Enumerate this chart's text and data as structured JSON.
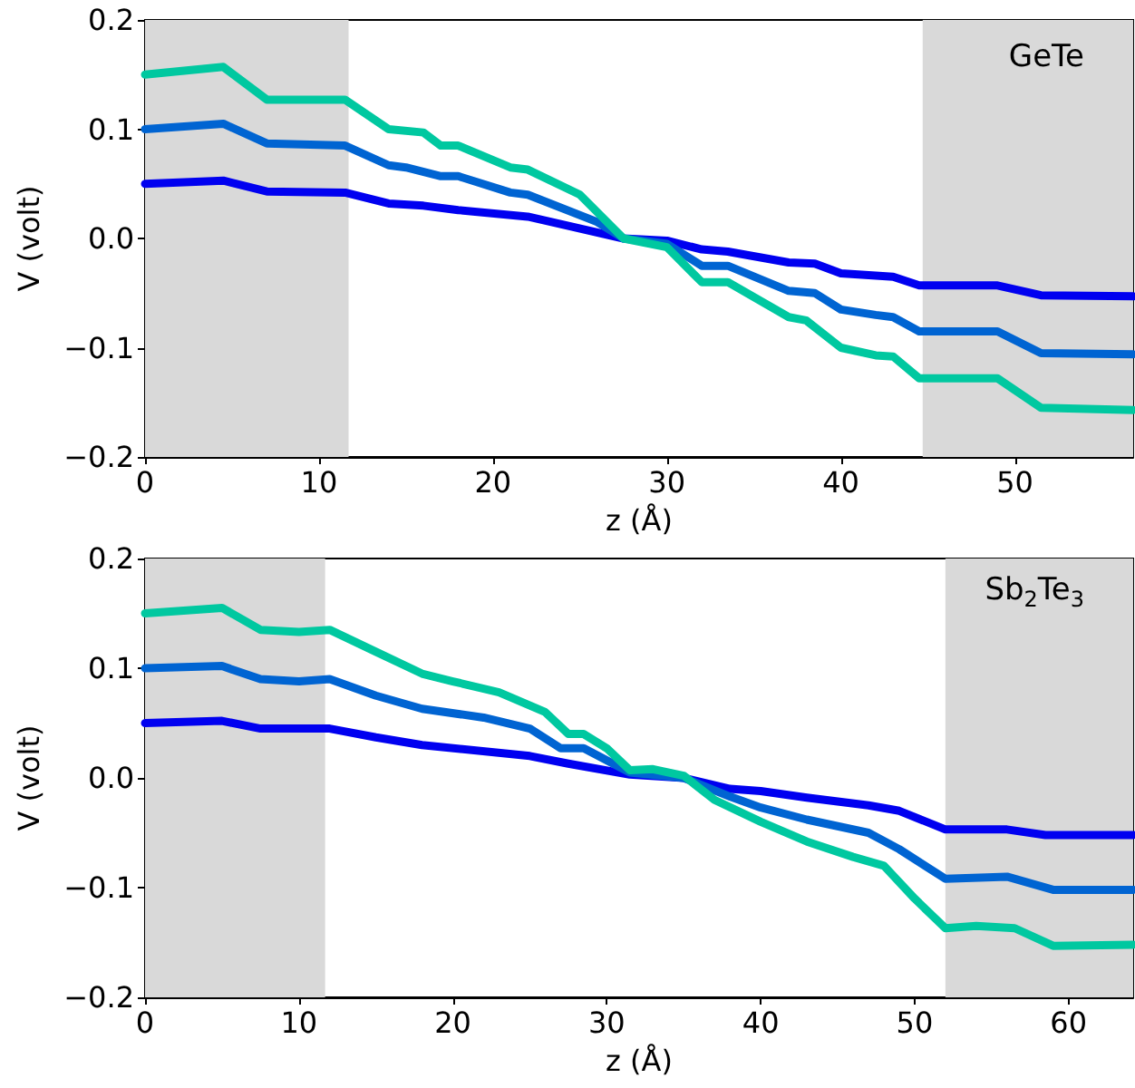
{
  "chart_data": [
    {
      "type": "line",
      "xlabel": "z (Å)",
      "ylabel": "V (volt)",
      "annotations": [
        "GeTe"
      ],
      "xlim": [
        0,
        56.8
      ],
      "xticks": [
        0,
        10,
        20,
        30,
        40,
        50
      ],
      "ylim": [
        -0.2,
        0.2
      ],
      "yticks": [
        {
          "value": -0.2,
          "label": "−0.2"
        },
        {
          "value": -0.1,
          "label": "−0.1"
        },
        {
          "value": 0,
          "label": "0.0"
        },
        {
          "value": 0.1,
          "label": "0.1"
        },
        {
          "value": 0.2,
          "label": "0.2"
        }
      ],
      "grid": false,
      "marker": "none",
      "line_style": "solid",
      "bands": [
        {
          "axis": "x",
          "from": 0,
          "to": 11.7,
          "color": "#d9d9d9"
        },
        {
          "axis": "x",
          "from": 44.7,
          "to": 56.8,
          "color": "#d9d9d9"
        }
      ],
      "series": [
        {
          "color": "#0000f0",
          "x": [
            0,
            4.5,
            7,
            11.5,
            14,
            16,
            18,
            22,
            27.5,
            30,
            32,
            33.5,
            37,
            38.5,
            40,
            43,
            44.5,
            49,
            51.5,
            56.8
          ],
          "values": [
            0.05,
            0.053,
            0.043,
            0.042,
            0.032,
            0.03,
            0.026,
            0.02,
            0.0,
            -0.002,
            -0.01,
            -0.012,
            -0.022,
            -0.023,
            -0.032,
            -0.035,
            -0.043,
            -0.043,
            -0.052,
            -0.053
          ]
        },
        {
          "color": "#0064d2",
          "x": [
            0,
            4.5,
            7,
            11.5,
            14,
            15,
            17,
            18,
            21,
            22,
            26,
            27.5,
            30,
            32,
            33.5,
            37,
            38.5,
            40,
            42,
            43,
            44.5,
            49,
            51.5,
            56.8
          ],
          "values": [
            0.1,
            0.105,
            0.087,
            0.085,
            0.067,
            0.065,
            0.057,
            0.057,
            0.042,
            0.04,
            0.015,
            0.0,
            -0.005,
            -0.025,
            -0.025,
            -0.048,
            -0.05,
            -0.065,
            -0.07,
            -0.072,
            -0.085,
            -0.085,
            -0.105,
            -0.106
          ]
        },
        {
          "color": "#00c8a0",
          "x": [
            0,
            4.5,
            7,
            11.5,
            14,
            16,
            17,
            18,
            21,
            22,
            25,
            27.5,
            30,
            32,
            33.5,
            37,
            38,
            40,
            42,
            43,
            44.5,
            49,
            51.5,
            56.8
          ],
          "values": [
            0.15,
            0.157,
            0.127,
            0.127,
            0.1,
            0.097,
            0.085,
            0.085,
            0.065,
            0.063,
            0.04,
            0.0,
            -0.008,
            -0.04,
            -0.04,
            -0.072,
            -0.075,
            -0.1,
            -0.107,
            -0.108,
            -0.128,
            -0.128,
            -0.155,
            -0.157
          ]
        }
      ]
    },
    {
      "type": "line",
      "xlabel": "z (Å)",
      "ylabel": "V (volt)",
      "annotations": [
        "Sb$_{2}$Te$_{3}$"
      ],
      "xlim": [
        0,
        64.2
      ],
      "xticks": [
        0,
        10,
        20,
        30,
        40,
        50,
        60
      ],
      "ylim": [
        -0.2,
        0.2
      ],
      "yticks": [
        {
          "value": -0.2,
          "label": "−0.2"
        },
        {
          "value": -0.1,
          "label": "−0.1"
        },
        {
          "value": 0,
          "label": "0.0"
        },
        {
          "value": 0.1,
          "label": "0.1"
        },
        {
          "value": 0.2,
          "label": "0.2"
        }
      ],
      "grid": false,
      "marker": "none",
      "line_style": "solid",
      "bands": [
        {
          "axis": "x",
          "from": 0,
          "to": 11.7,
          "color": "#d9d9d9"
        },
        {
          "axis": "x",
          "from": 52,
          "to": 64.2,
          "color": "#d9d9d9"
        }
      ],
      "series": [
        {
          "color": "#0000f0",
          "x": [
            0,
            5,
            7.5,
            12,
            15,
            18,
            25,
            27.5,
            31.5,
            35,
            38,
            40,
            43,
            47,
            49,
            52,
            56,
            58.5,
            64.2
          ],
          "values": [
            0.05,
            0.052,
            0.045,
            0.045,
            0.037,
            0.03,
            0.02,
            0.013,
            0.003,
            0.0,
            -0.01,
            -0.012,
            -0.018,
            -0.025,
            -0.03,
            -0.047,
            -0.047,
            -0.052,
            -0.052
          ]
        },
        {
          "color": "#0064d2",
          "x": [
            0,
            5,
            7.5,
            10,
            12,
            15,
            18,
            22,
            25,
            27,
            28.5,
            31.5,
            35,
            38,
            40,
            43,
            47,
            49,
            52,
            56,
            59,
            64.2
          ],
          "values": [
            0.1,
            0.102,
            0.09,
            0.088,
            0.09,
            0.075,
            0.063,
            0.055,
            0.045,
            0.027,
            0.027,
            0.005,
            0.0,
            -0.017,
            -0.027,
            -0.038,
            -0.05,
            -0.065,
            -0.092,
            -0.09,
            -0.102,
            -0.102
          ]
        },
        {
          "color": "#00c8a0",
          "x": [
            0,
            5,
            7.5,
            10,
            12,
            15,
            18,
            20,
            23,
            26,
            27.5,
            28.5,
            30,
            31.5,
            33,
            35,
            37,
            40,
            43,
            46,
            48,
            50,
            52,
            54,
            56.5,
            59,
            64.2
          ],
          "values": [
            0.15,
            0.155,
            0.135,
            0.133,
            0.135,
            0.115,
            0.095,
            0.088,
            0.078,
            0.06,
            0.04,
            0.04,
            0.027,
            0.007,
            0.008,
            0.002,
            -0.02,
            -0.04,
            -0.058,
            -0.072,
            -0.08,
            -0.11,
            -0.137,
            -0.135,
            -0.137,
            -0.153,
            -0.152
          ]
        }
      ]
    }
  ]
}
